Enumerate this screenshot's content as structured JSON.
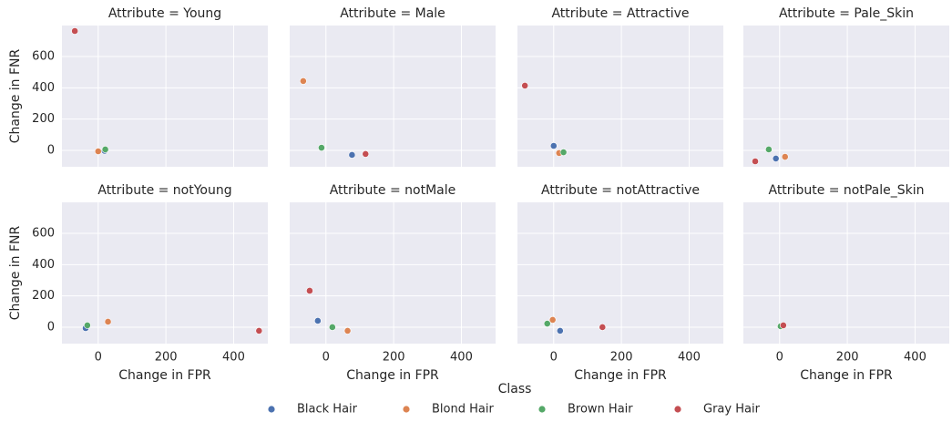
{
  "chart_data": [
    {
      "type": "scatter",
      "title": "Attribute = Young",
      "ylabel": "Change in FNR",
      "xlim": [
        -107,
        501
      ],
      "ylim": [
        -105,
        798
      ],
      "xticks": [
        0,
        200,
        400
      ],
      "yticks": [
        0,
        200,
        400,
        600
      ],
      "grid": true,
      "series": [
        {
          "name": "Black Hair",
          "color": "#4c72b0",
          "x": [
            19
          ],
          "values": [
            -3
          ]
        },
        {
          "name": "Blond Hair",
          "color": "#dd8452",
          "x": [
            0
          ],
          "values": [
            -6
          ]
        },
        {
          "name": "Brown Hair",
          "color": "#55a868",
          "x": [
            21
          ],
          "values": [
            6
          ]
        },
        {
          "name": "Gray Hair",
          "color": "#c44e52",
          "x": [
            -69
          ],
          "values": [
            763
          ]
        }
      ]
    },
    {
      "type": "scatter",
      "title": "Attribute = Male",
      "xlim": [
        -107,
        501
      ],
      "ylim": [
        -105,
        798
      ],
      "xticks": [
        0,
        200,
        400
      ],
      "yticks": [
        0,
        200,
        400,
        600
      ],
      "grid": true,
      "series": [
        {
          "name": "Black Hair",
          "color": "#4c72b0",
          "x": [
            77
          ],
          "values": [
            -29
          ]
        },
        {
          "name": "Blond Hair",
          "color": "#dd8452",
          "x": [
            -67
          ],
          "values": [
            443
          ]
        },
        {
          "name": "Brown Hair",
          "color": "#55a868",
          "x": [
            -13
          ],
          "values": [
            17
          ]
        },
        {
          "name": "Gray Hair",
          "color": "#c44e52",
          "x": [
            117
          ],
          "values": [
            -23
          ]
        }
      ]
    },
    {
      "type": "scatter",
      "title": "Attribute = Attractive",
      "xlim": [
        -107,
        501
      ],
      "ylim": [
        -105,
        798
      ],
      "xticks": [
        0,
        200,
        400
      ],
      "yticks": [
        0,
        200,
        400,
        600
      ],
      "grid": true,
      "series": [
        {
          "name": "Black Hair",
          "color": "#4c72b0",
          "x": [
            0
          ],
          "values": [
            29
          ]
        },
        {
          "name": "Blond Hair",
          "color": "#dd8452",
          "x": [
            16
          ],
          "values": [
            -17
          ]
        },
        {
          "name": "Brown Hair",
          "color": "#55a868",
          "x": [
            29
          ],
          "values": [
            -12
          ]
        },
        {
          "name": "Gray Hair",
          "color": "#c44e52",
          "x": [
            -85
          ],
          "values": [
            414
          ]
        }
      ]
    },
    {
      "type": "scatter",
      "title": "Attribute = Pale_Skin",
      "xlim": [
        -107,
        501
      ],
      "ylim": [
        -105,
        798
      ],
      "xticks": [
        0,
        200,
        400
      ],
      "yticks": [
        0,
        200,
        400,
        600
      ],
      "grid": true,
      "series": [
        {
          "name": "Black Hair",
          "color": "#4c72b0",
          "x": [
            -11
          ],
          "values": [
            -52
          ]
        },
        {
          "name": "Blond Hair",
          "color": "#dd8452",
          "x": [
            16
          ],
          "values": [
            -41
          ]
        },
        {
          "name": "Brown Hair",
          "color": "#55a868",
          "x": [
            -32
          ],
          "values": [
            6
          ]
        },
        {
          "name": "Gray Hair",
          "color": "#c44e52",
          "x": [
            -72
          ],
          "values": [
            -70
          ]
        }
      ]
    },
    {
      "type": "scatter",
      "title": "Attribute = notYoung",
      "xlabel": "Change in FPR",
      "ylabel": "Change in FNR",
      "xlim": [
        -107,
        501
      ],
      "ylim": [
        -105,
        798
      ],
      "xticks": [
        0,
        200,
        400
      ],
      "yticks": [
        0,
        200,
        400,
        600
      ],
      "grid": true,
      "series": [
        {
          "name": "Black Hair",
          "color": "#4c72b0",
          "x": [
            -37
          ],
          "values": [
            -6
          ]
        },
        {
          "name": "Blond Hair",
          "color": "#dd8452",
          "x": [
            29
          ],
          "values": [
            35
          ]
        },
        {
          "name": "Brown Hair",
          "color": "#55a868",
          "x": [
            -32
          ],
          "values": [
            12
          ]
        },
        {
          "name": "Gray Hair",
          "color": "#c44e52",
          "x": [
            475
          ],
          "values": [
            -23
          ]
        }
      ]
    },
    {
      "type": "scatter",
      "title": "Attribute = notMale",
      "xlabel": "Change in FPR",
      "xlim": [
        -107,
        501
      ],
      "ylim": [
        -105,
        798
      ],
      "xticks": [
        0,
        200,
        400
      ],
      "yticks": [
        0,
        200,
        400,
        600
      ],
      "grid": true,
      "series": [
        {
          "name": "Black Hair",
          "color": "#4c72b0",
          "x": [
            -24
          ],
          "values": [
            41
          ]
        },
        {
          "name": "Blond Hair",
          "color": "#dd8452",
          "x": [
            64
          ],
          "values": [
            -23
          ]
        },
        {
          "name": "Brown Hair",
          "color": "#55a868",
          "x": [
            19
          ],
          "values": [
            0
          ]
        },
        {
          "name": "Gray Hair",
          "color": "#c44e52",
          "x": [
            -48
          ],
          "values": [
            233
          ]
        }
      ]
    },
    {
      "type": "scatter",
      "title": "Attribute = notAttractive",
      "xlabel": "Change in FPR",
      "xlim": [
        -107,
        501
      ],
      "ylim": [
        -105,
        798
      ],
      "xticks": [
        0,
        200,
        400
      ],
      "yticks": [
        0,
        200,
        400,
        600
      ],
      "grid": true,
      "series": [
        {
          "name": "Black Hair",
          "color": "#4c72b0",
          "x": [
            19
          ],
          "values": [
            -23
          ]
        },
        {
          "name": "Blond Hair",
          "color": "#dd8452",
          "x": [
            -3
          ],
          "values": [
            47
          ]
        },
        {
          "name": "Brown Hair",
          "color": "#55a868",
          "x": [
            -19
          ],
          "values": [
            23
          ]
        },
        {
          "name": "Gray Hair",
          "color": "#c44e52",
          "x": [
            144
          ],
          "values": [
            0
          ]
        }
      ]
    },
    {
      "type": "scatter",
      "title": "Attribute = notPale_Skin",
      "xlabel": "Change in FPR",
      "xlim": [
        -107,
        501
      ],
      "ylim": [
        -105,
        798
      ],
      "xticks": [
        0,
        200,
        400
      ],
      "yticks": [
        0,
        200,
        400,
        600
      ],
      "grid": true,
      "series": [
        {
          "name": "Black Hair",
          "color": "#4c72b0",
          "x": [
            5
          ],
          "values": [
            5
          ]
        },
        {
          "name": "Blond Hair",
          "color": "#dd8452",
          "x": [
            6
          ],
          "values": [
            4
          ]
        },
        {
          "name": "Brown Hair",
          "color": "#55a868",
          "x": [
            3
          ],
          "values": [
            6
          ]
        },
        {
          "name": "Gray Hair",
          "color": "#c44e52",
          "x": [
            11
          ],
          "values": [
            12
          ]
        }
      ]
    }
  ],
  "legend_title": "Class"
}
